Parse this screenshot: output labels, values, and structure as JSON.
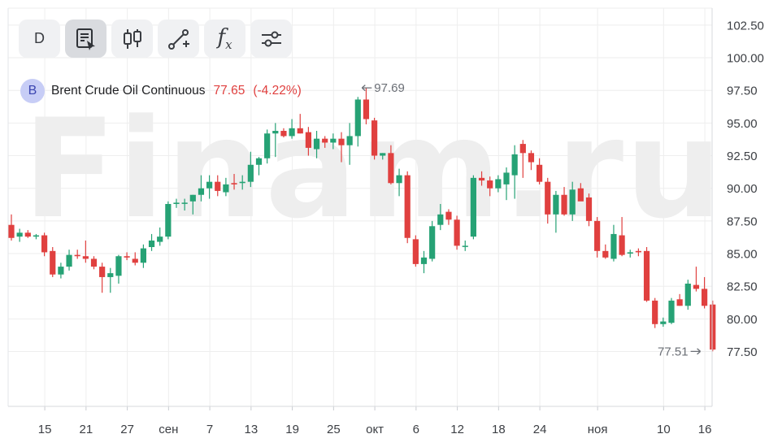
{
  "watermark": "Finam.ru",
  "toolbar": {
    "interval_label": "D",
    "tools": [
      {
        "name": "notes-tool-icon",
        "active": true
      },
      {
        "name": "candles-icon",
        "active": false
      },
      {
        "name": "draw-line-icon",
        "active": false
      },
      {
        "name": "indicators-icon",
        "active": false
      },
      {
        "name": "settings-sliders-icon",
        "active": false
      }
    ],
    "indicators_glyph": "f",
    "indicators_glyph_sub": "x"
  },
  "legend": {
    "badge": "B",
    "name": "Brent Crude Oil Continuous",
    "price": "77.65",
    "change": "(-4.22%)"
  },
  "colors": {
    "up": "#26a275",
    "down": "#e0403f",
    "grid": "#eeeeee",
    "axis_text": "#3c3f44",
    "annotation": "#6b6f76"
  },
  "chart_data": {
    "type": "candlestick",
    "title": "",
    "ylim": [
      73.3,
      103.8
    ],
    "y_ticks": [
      "102.50",
      "100.00",
      "97.50",
      "95.00",
      "92.50",
      "90.00",
      "87.50",
      "85.00",
      "82.50",
      "80.00",
      "77.50"
    ],
    "x_ticks": [
      {
        "label": "15",
        "index": 4
      },
      {
        "label": "21",
        "index": 9
      },
      {
        "label": "27",
        "index": 14
      },
      {
        "label": "сен",
        "index": 19
      },
      {
        "label": "7",
        "index": 24
      },
      {
        "label": "13",
        "index": 29
      },
      {
        "label": "19",
        "index": 34
      },
      {
        "label": "25",
        "index": 39
      },
      {
        "label": "окт",
        "index": 44
      },
      {
        "label": "6",
        "index": 49
      },
      {
        "label": "12",
        "index": 54
      },
      {
        "label": "18",
        "index": 59
      },
      {
        "label": "24",
        "index": 64
      },
      {
        "label": "ноя",
        "index": 71
      },
      {
        "label": "10",
        "index": 79
      },
      {
        "label": "16",
        "index": 84
      }
    ],
    "annotations": [
      {
        "label": "97.69",
        "index": 42,
        "value": 97.69,
        "side": "right"
      },
      {
        "label": "77.51",
        "index": 84,
        "value": 77.51,
        "side": "left"
      }
    ],
    "candles": [
      [
        87.2,
        88.0,
        86.0,
        86.2
      ],
      [
        86.3,
        86.9,
        85.9,
        86.6
      ],
      [
        86.6,
        86.8,
        86.2,
        86.3
      ],
      [
        86.3,
        86.5,
        86.1,
        86.4
      ],
      [
        86.4,
        86.6,
        84.8,
        85.1
      ],
      [
        85.2,
        85.5,
        83.2,
        83.4
      ],
      [
        83.4,
        84.3,
        83.1,
        84.0
      ],
      [
        84.0,
        85.3,
        83.7,
        84.9
      ],
      [
        84.9,
        85.3,
        84.6,
        84.8
      ],
      [
        84.8,
        86.0,
        84.3,
        84.6
      ],
      [
        84.6,
        84.8,
        83.8,
        84.0
      ],
      [
        84.0,
        84.3,
        82.0,
        83.2
      ],
      [
        83.2,
        83.9,
        82.0,
        83.5
      ],
      [
        83.3,
        84.9,
        82.7,
        84.8
      ],
      [
        84.8,
        85.1,
        84.5,
        84.7
      ],
      [
        84.6,
        85.1,
        84.1,
        84.3
      ],
      [
        84.3,
        85.7,
        83.9,
        85.4
      ],
      [
        85.5,
        86.5,
        85.2,
        86.0
      ],
      [
        85.9,
        87.0,
        85.6,
        86.3
      ],
      [
        86.3,
        89.0,
        86.1,
        88.8
      ],
      [
        88.8,
        89.2,
        88.5,
        88.9
      ],
      [
        88.9,
        89.2,
        88.3,
        88.9
      ],
      [
        89.0,
        89.5,
        88.0,
        89.5
      ],
      [
        89.5,
        91.0,
        89.0,
        90.0
      ],
      [
        90.0,
        91.0,
        89.2,
        90.5
      ],
      [
        90.5,
        91.0,
        89.4,
        89.8
      ],
      [
        89.7,
        90.8,
        89.4,
        90.3
      ],
      [
        90.4,
        91.1,
        89.9,
        90.3
      ],
      [
        90.4,
        91.0,
        89.9,
        90.5
      ],
      [
        90.5,
        92.8,
        90.1,
        91.8
      ],
      [
        91.8,
        92.4,
        91.0,
        92.3
      ],
      [
        92.3,
        94.5,
        91.9,
        94.2
      ],
      [
        94.2,
        95.0,
        92.4,
        94.4
      ],
      [
        94.4,
        94.6,
        93.9,
        94.0
      ],
      [
        94.0,
        95.3,
        93.8,
        94.6
      ],
      [
        94.6,
        95.7,
        94.2,
        94.2
      ],
      [
        94.3,
        94.7,
        92.5,
        93.1
      ],
      [
        93.0,
        94.4,
        92.3,
        93.8
      ],
      [
        93.8,
        94.0,
        93.1,
        93.5
      ],
      [
        93.5,
        94.2,
        93.0,
        93.8
      ],
      [
        93.8,
        94.3,
        92.0,
        93.3
      ],
      [
        93.3,
        95.0,
        91.8,
        94.0
      ],
      [
        94.0,
        97.0,
        93.2,
        96.8
      ],
      [
        96.8,
        97.69,
        94.9,
        95.3
      ],
      [
        95.2,
        95.4,
        92.2,
        92.5
      ],
      [
        92.5,
        92.7,
        92.2,
        92.7
      ],
      [
        92.7,
        93.3,
        90.3,
        90.4
      ],
      [
        90.4,
        91.5,
        89.4,
        91.0
      ],
      [
        91.0,
        91.3,
        85.8,
        86.2
      ],
      [
        86.1,
        86.4,
        84.0,
        84.2
      ],
      [
        84.2,
        85.2,
        83.5,
        84.7
      ],
      [
        84.6,
        87.5,
        84.4,
        87.1
      ],
      [
        87.2,
        88.8,
        86.8,
        88.0
      ],
      [
        88.2,
        88.4,
        87.2,
        87.6
      ],
      [
        87.6,
        87.9,
        85.3,
        85.6
      ],
      [
        85.6,
        86.0,
        85.2,
        85.6
      ],
      [
        86.3,
        91.0,
        86.1,
        90.8
      ],
      [
        90.8,
        91.3,
        90.2,
        90.6
      ],
      [
        90.6,
        90.9,
        89.4,
        90.0
      ],
      [
        90.0,
        91.0,
        89.7,
        90.7
      ],
      [
        90.3,
        91.6,
        89.1,
        91.2
      ],
      [
        91.0,
        93.3,
        89.2,
        92.6
      ],
      [
        93.4,
        93.7,
        90.8,
        92.7
      ],
      [
        92.7,
        92.9,
        91.4,
        92.0
      ],
      [
        91.8,
        92.3,
        90.3,
        90.5
      ],
      [
        90.5,
        90.8,
        87.3,
        88.0
      ],
      [
        88.0,
        89.8,
        86.6,
        89.5
      ],
      [
        89.5,
        90.1,
        87.9,
        88.0
      ],
      [
        88.0,
        90.5,
        87.5,
        89.9
      ],
      [
        90.0,
        90.4,
        89.1,
        89.0
      ],
      [
        89.3,
        89.6,
        87.1,
        87.5
      ],
      [
        87.5,
        87.8,
        84.7,
        85.2
      ],
      [
        85.2,
        85.7,
        84.6,
        84.7
      ],
      [
        84.6,
        87.2,
        84.4,
        86.5
      ],
      [
        86.4,
        87.8,
        84.8,
        84.9
      ],
      [
        85.0,
        85.3,
        84.7,
        85.1
      ],
      [
        85.2,
        85.4,
        84.8,
        85.1
      ],
      [
        85.2,
        85.5,
        81.3,
        81.4
      ],
      [
        81.4,
        81.6,
        79.3,
        79.6
      ],
      [
        79.6,
        80.1,
        79.4,
        79.8
      ],
      [
        79.7,
        81.6,
        79.6,
        81.4
      ],
      [
        81.5,
        81.9,
        81.0,
        81.0
      ],
      [
        81.0,
        83.0,
        80.7,
        82.7
      ],
      [
        82.6,
        84.0,
        82.1,
        82.3
      ],
      [
        82.3,
        83.2,
        80.8,
        81.0
      ],
      [
        81.1,
        81.4,
        77.51,
        77.65
      ]
    ]
  }
}
